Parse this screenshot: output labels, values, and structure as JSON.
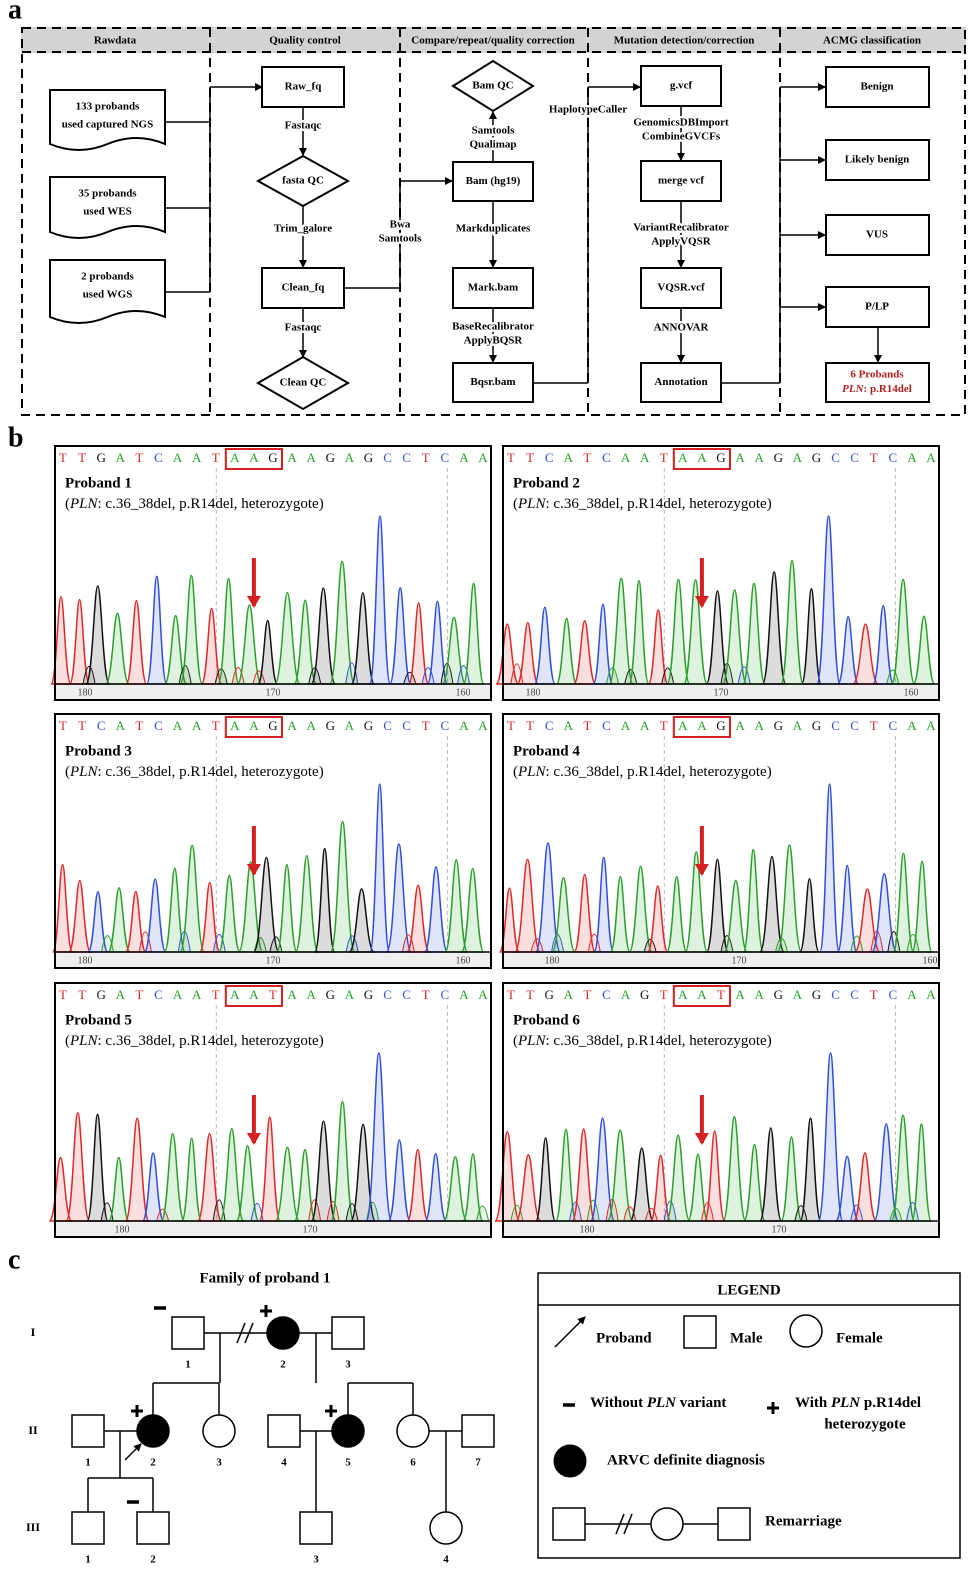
{
  "panel_labels": [
    "a",
    "b",
    "c"
  ],
  "workflow": {
    "columns": [
      "Rawdata",
      "Quality control",
      "Compare/repeat/quality correction",
      "Mutation detection/correction",
      "ACMG classification"
    ],
    "inputs": [
      [
        "133 probands",
        "used captured NGS"
      ],
      [
        "35 probands",
        "used WES"
      ],
      [
        "2 probands",
        "used WGS"
      ]
    ],
    "nodes": {
      "raw_fq": "Raw_fq",
      "fasta_qc": "fasta QC",
      "clean_fq": "Clean_fq",
      "clean_qc": "Clean QC",
      "bam_qc": "Bam QC",
      "bam": "Bam (hg19)",
      "mark_bam": "Mark.bam",
      "bqsr_bam": "Bqsr.bam",
      "gvcf": "g.vcf",
      "merge_vcf": "merge vcf",
      "vqsr_vcf": "VQSR.vcf",
      "annotation": "Annotation"
    },
    "tools": {
      "fastaqc_1": [
        "Fastaqc"
      ],
      "trim_galore": [
        "Trim_galore"
      ],
      "fastaqc_2": [
        "Fastaqc"
      ],
      "samtools_qualimap": [
        "Samtools",
        "Qualimap"
      ],
      "bwa_samtools": [
        "Bwa",
        "Samtools"
      ],
      "markduplicates": [
        "Markduplicates"
      ],
      "bqsr": [
        "BaseRecalibrator",
        "ApplyBQSR"
      ],
      "haplotypecaller": [
        "HaplotypeCaller"
      ],
      "genomicsdb": [
        "GenomicsDBImport",
        "CombineGVCFs"
      ],
      "vqsr": [
        "VariantRecalibrator",
        "ApplyVQSR"
      ],
      "annovar": [
        "ANNOVAR"
      ]
    },
    "classes": [
      "Benign",
      "Likely benign",
      "VUS",
      "P/LP"
    ],
    "result": {
      "line1": "6 Probands",
      "gene": "PLN",
      "line2": ": p.R14del"
    }
  },
  "chromatograms": [
    {
      "title": "Proband 1",
      "description": [
        "(",
        "PLN",
        ": c.36_38del, p.R14del, heterozygote)"
      ],
      "sequence": "TTGATCAATAAGAAGAGCCTCAA",
      "positions": [
        180,
        170,
        160
      ]
    },
    {
      "title": "Proband 2",
      "description": [
        "(",
        "PLN",
        ": c.36_38del, p.R14del, heterozygote)"
      ],
      "sequence": "TTCATCAATAAGAAGAGCCTCAA",
      "positions": [
        180,
        170,
        160
      ]
    },
    {
      "title": "Proband 3",
      "description": [
        "(",
        "PLN",
        ": c.36_38del, p.R14del, heterozygote)"
      ],
      "sequence": "TTCATCAATAAGAAGAGCCTCAA",
      "positions": [
        180,
        170,
        160
      ]
    },
    {
      "title": "Proband 4",
      "description": [
        "(",
        "PLN",
        ": c.36_38del, p.R14del, heterozygote)"
      ],
      "sequence": "TTCATCAATAAGAAGAGCCTCAA",
      "positions": [
        180,
        170,
        160
      ]
    },
    {
      "title": "Proband 5",
      "description": [
        "(",
        "PLN",
        ": c.36_38del, p.R14del, heterozygote)"
      ],
      "sequence": "TTGATCAATAATAAGAGCCTCAA",
      "positions": [
        180,
        170
      ]
    },
    {
      "title": "Proband 6",
      "description": [
        "(",
        "PLN",
        ": c.36_38del, p.R14del, heterozygote)"
      ],
      "sequence": "TTGATCAGTAATAAGAGCCTCAA",
      "positions": [
        180,
        170
      ]
    }
  ],
  "pedigree": {
    "title": "Family of proband 1",
    "generations": [
      "I",
      "II",
      "III"
    ],
    "individuals": [
      [
        "1",
        "2",
        "3"
      ],
      [
        "1",
        "2",
        "3",
        "4",
        "5",
        "6",
        "7"
      ],
      [
        "1",
        "2",
        "3",
        "4"
      ]
    ]
  },
  "legend": {
    "title": "LEGEND",
    "proband": "Proband",
    "male": "Male",
    "female": "Female",
    "without": [
      "Without ",
      "PLN",
      " variant"
    ],
    "with": [
      "With ",
      "PLN",
      " p.R14del"
    ],
    "with_line2": "heterozygote",
    "arvc": "ARVC definite diagnosis",
    "remarriage": "Remarriage"
  }
}
